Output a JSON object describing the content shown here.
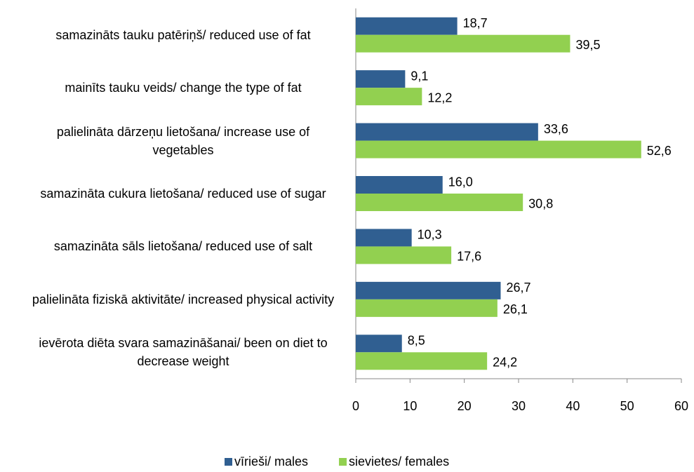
{
  "chart_data": {
    "type": "barh",
    "categories": [
      "samazināts tauku patēriņš/ reduced use of fat",
      "mainīts tauku veids/ change the type of fat",
      "palielināta dārzeņu lietošana/ increase use of vegetables",
      "samazināta cukura lietošana/ reduced use of sugar",
      "samazināta sāls lietošana/ reduced use of salt",
      "palielināta fiziskā aktivitāte/ increased physical activity",
      "ievērota diēta svara samazināšanai/ been on diet to decrease weight"
    ],
    "series": [
      {
        "name": "vīrieši/ males",
        "color": "#305f91",
        "values": [
          18.7,
          9.1,
          33.6,
          16.0,
          10.3,
          26.7,
          8.5
        ],
        "value_labels": [
          "18,7",
          "9,1",
          "33,6",
          "16,0",
          "10,3",
          "26,7",
          "8,5"
        ]
      },
      {
        "name": "sievietes/ females",
        "color": "#92d050",
        "values": [
          39.5,
          12.2,
          52.6,
          30.8,
          17.6,
          26.1,
          24.2
        ],
        "value_labels": [
          "39,5",
          "12,2",
          "52,6",
          "30,8",
          "17,6",
          "26,1",
          "24,2"
        ]
      }
    ],
    "xlim": [
      0,
      60
    ],
    "xticks": [
      0,
      10,
      20,
      30,
      40,
      50,
      60
    ],
    "legend": "bottom"
  }
}
